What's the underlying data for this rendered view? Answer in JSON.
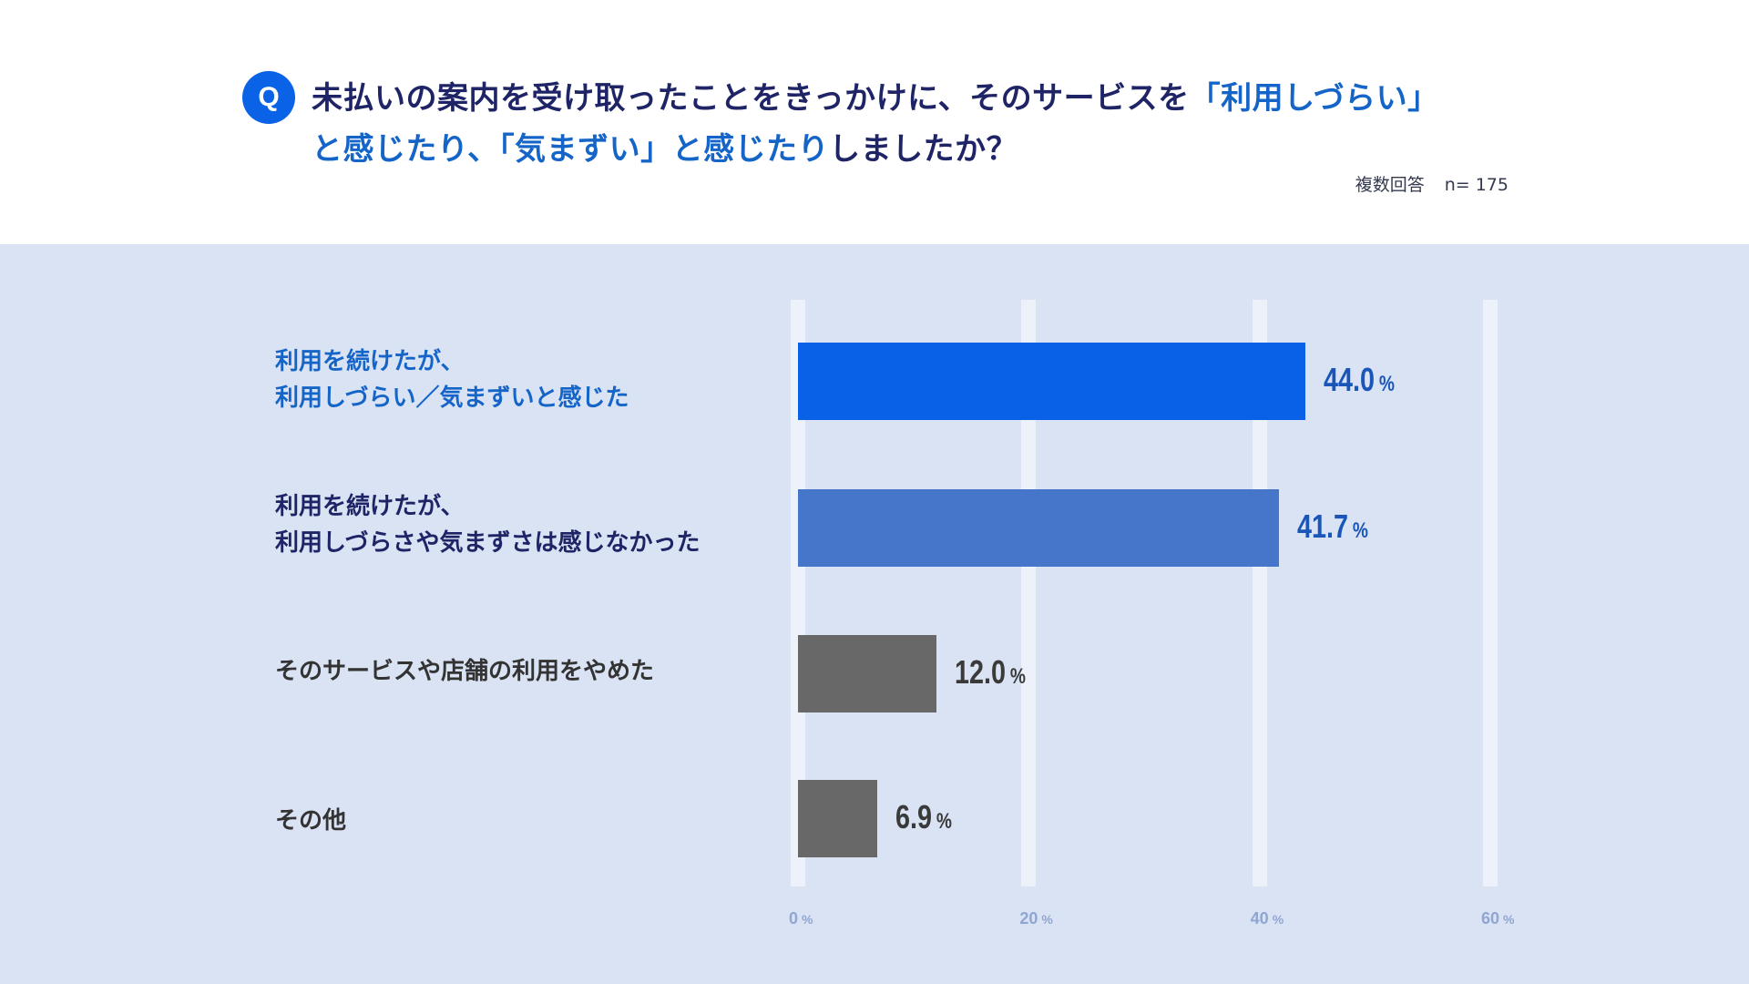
{
  "header": {
    "q_label": "Q",
    "title_line1_part1": "未払いの案内を受け取ったことをきっかけに、そのサービスを",
    "title_line1_highlight": "「利用しづらい」",
    "title_line2_highlight": "と感じたり、「気まずい」と感じたり",
    "title_line2_part2": "しましたか？",
    "answer_type": "複数回答",
    "sample_size": "n= 175"
  },
  "chart_data": {
    "type": "bar",
    "orientation": "horizontal",
    "categories": [
      [
        "利用を続けたが、",
        "利用しづらい／気まずいと感じた"
      ],
      [
        "利用を続けたが、",
        "利用しづらさや気まずさは感じなかった"
      ],
      [
        "そのサービスや店舗の利用をやめた"
      ],
      [
        "その他"
      ]
    ],
    "values": [
      44.0,
      41.7,
      12.0,
      6.9
    ],
    "value_labels": [
      "44.0",
      "41.7",
      "12.0",
      "6.9"
    ],
    "unit": "%",
    "bar_colors": [
      "#0861e6",
      "#4576c9",
      "#686868",
      "#686868"
    ],
    "label_colors": [
      "#1565c8",
      "#1e2466",
      "#333333",
      "#333333"
    ],
    "value_colors": [
      "#1a56b8",
      "#1a56b8",
      "#3a3a3a",
      "#3a3a3a"
    ],
    "xlim": [
      0,
      60
    ],
    "xticks": [
      "0",
      "20",
      "40",
      "60"
    ],
    "xtick_values": [
      0,
      20,
      40,
      60
    ],
    "grid": true
  }
}
